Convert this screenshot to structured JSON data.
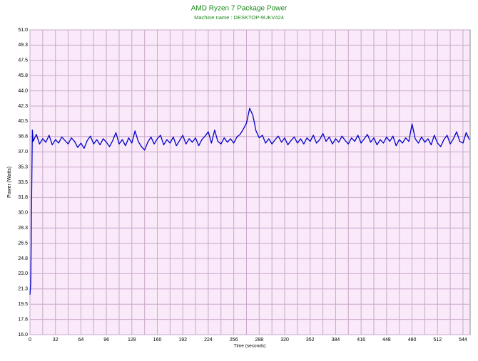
{
  "chart_data": {
    "type": "line",
    "title": "AMD Ryzen 7 Package Power",
    "subtitle": "Machine name : DESKTOP-9UKV424",
    "xlabel": "Time (seconds)",
    "ylabel": "Power (Watts)",
    "xlim": [
      0,
      553
    ],
    "ylim": [
      16,
      51
    ],
    "xticks": [
      0,
      32,
      64,
      96,
      128,
      160,
      192,
      224,
      256,
      288,
      320,
      352,
      384,
      416,
      448,
      480,
      512,
      544
    ],
    "x_minor_ticks": [
      16,
      48,
      80,
      112,
      144,
      176,
      208,
      240,
      272,
      304,
      336,
      368,
      400,
      432,
      464,
      496,
      528
    ],
    "yticks": [
      {
        "value": 16,
        "label": "16.0"
      },
      {
        "value": 17.75,
        "label": "17.8"
      },
      {
        "value": 19.5,
        "label": "19.5"
      },
      {
        "value": 21.25,
        "label": "21.3"
      },
      {
        "value": 23,
        "label": "23.0"
      },
      {
        "value": 24.75,
        "label": "24.8"
      },
      {
        "value": 26.5,
        "label": "26.5"
      },
      {
        "value": 28.25,
        "label": "28.3"
      },
      {
        "value": 30,
        "label": "30.0"
      },
      {
        "value": 31.75,
        "label": "31.8"
      },
      {
        "value": 33.5,
        "label": "33.5"
      },
      {
        "value": 35.25,
        "label": "35.3"
      },
      {
        "value": 37,
        "label": "37.0"
      },
      {
        "value": 38.75,
        "label": "38.8"
      },
      {
        "value": 40.5,
        "label": "40.5"
      },
      {
        "value": 42.25,
        "label": "42.3"
      },
      {
        "value": 44,
        "label": "44.0"
      },
      {
        "value": 45.75,
        "label": "45.8"
      },
      {
        "value": 47.5,
        "label": "47.5"
      },
      {
        "value": 49.25,
        "label": "49.3"
      },
      {
        "value": 51,
        "label": "51.0"
      }
    ],
    "grid": true,
    "x": [
      0,
      1,
      2,
      3,
      4,
      8,
      12,
      16,
      20,
      24,
      28,
      32,
      36,
      40,
      44,
      48,
      52,
      56,
      60,
      64,
      68,
      72,
      76,
      80,
      84,
      88,
      92,
      96,
      100,
      104,
      108,
      112,
      116,
      120,
      124,
      128,
      132,
      136,
      140,
      144,
      148,
      152,
      156,
      160,
      164,
      168,
      172,
      176,
      180,
      184,
      188,
      192,
      196,
      200,
      204,
      208,
      212,
      216,
      220,
      224,
      228,
      232,
      236,
      240,
      244,
      248,
      252,
      256,
      260,
      264,
      268,
      272,
      276,
      280,
      284,
      288,
      292,
      296,
      300,
      304,
      308,
      312,
      316,
      320,
      324,
      328,
      332,
      336,
      340,
      344,
      348,
      352,
      356,
      360,
      364,
      368,
      372,
      376,
      380,
      384,
      388,
      392,
      396,
      400,
      404,
      408,
      412,
      416,
      420,
      424,
      428,
      432,
      436,
      440,
      444,
      448,
      452,
      456,
      460,
      464,
      468,
      472,
      476,
      480,
      484,
      488,
      492,
      496,
      500,
      504,
      508,
      512,
      516,
      520,
      524,
      528,
      532,
      536,
      540,
      544,
      548,
      552
    ],
    "series": [
      {
        "color": "#0000cc",
        "values": [
          20.6,
          22.0,
          31.0,
          39.5,
          38.2,
          39.0,
          37.9,
          38.5,
          38.1,
          38.9,
          37.8,
          38.4,
          38.0,
          38.7,
          38.3,
          37.9,
          38.6,
          38.2,
          37.5,
          38.0,
          37.4,
          38.3,
          38.8,
          37.9,
          38.4,
          37.8,
          38.5,
          38.1,
          37.6,
          38.3,
          39.2,
          37.9,
          38.4,
          37.7,
          38.6,
          38.0,
          39.4,
          38.2,
          37.6,
          37.2,
          38.1,
          38.7,
          37.9,
          38.5,
          38.9,
          37.8,
          38.4,
          38.0,
          38.7,
          37.7,
          38.3,
          38.9,
          37.9,
          38.5,
          38.1,
          38.6,
          37.7,
          38.4,
          38.8,
          39.3,
          38.0,
          39.5,
          38.2,
          37.9,
          38.6,
          38.1,
          38.5,
          38.0,
          38.7,
          39.0,
          39.6,
          40.3,
          42.0,
          41.2,
          39.4,
          38.6,
          38.9,
          38.0,
          38.5,
          37.9,
          38.4,
          38.8,
          38.1,
          38.6,
          37.8,
          38.3,
          38.7,
          38.0,
          38.5,
          37.9,
          38.6,
          38.2,
          38.9,
          38.0,
          38.4,
          39.1,
          38.2,
          38.7,
          37.9,
          38.5,
          38.1,
          38.8,
          38.3,
          37.9,
          38.6,
          38.2,
          38.9,
          38.0,
          38.5,
          39.0,
          38.1,
          38.6,
          37.8,
          38.4,
          38.0,
          38.7,
          38.2,
          38.8,
          37.7,
          38.4,
          38.0,
          38.6,
          38.2,
          40.2,
          38.5,
          38.0,
          38.7,
          38.1,
          38.5,
          37.8,
          38.9,
          38.0,
          37.6,
          38.4,
          38.9,
          37.9,
          38.5,
          39.3,
          38.2,
          38.0,
          39.2,
          38.4
        ]
      }
    ]
  }
}
